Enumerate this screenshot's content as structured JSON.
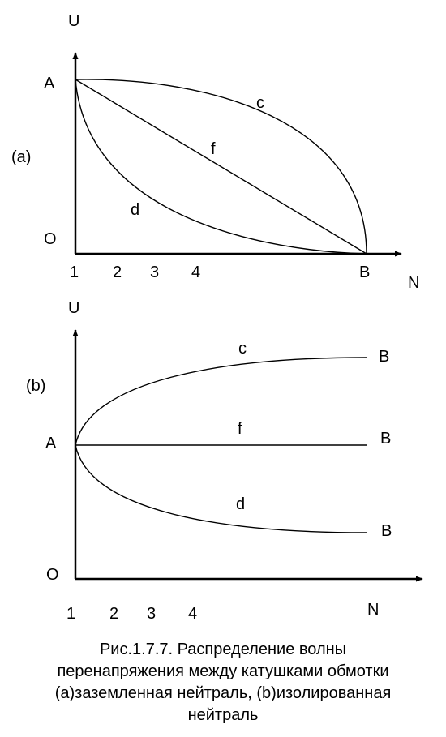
{
  "diagram_a": {
    "tag": "(a)",
    "axis_y": "U",
    "axis_x": "N",
    "origin": "O",
    "point_a": "A",
    "point_b": "B",
    "curve_c": "c",
    "curve_f": "f",
    "curve_d": "d",
    "ticks": [
      "1",
      "2",
      "3",
      "4"
    ]
  },
  "diagram_b": {
    "tag": "(b)",
    "axis_y": "U",
    "axis_x": "N",
    "origin": "O",
    "point_a": "A",
    "end_c": "B",
    "end_f": "B",
    "end_d": "B",
    "curve_c": "c",
    "curve_f": "f",
    "curve_d": "d",
    "ticks": [
      "1",
      "2",
      "3",
      "4"
    ]
  },
  "caption": {
    "line1": "Рис.1.7.7. Распределение волны",
    "line2": "перенапряжения между катушками обмотки",
    "line3": "(a)заземленная нейтраль, (b)изолированная",
    "line4": "нейтраль"
  }
}
